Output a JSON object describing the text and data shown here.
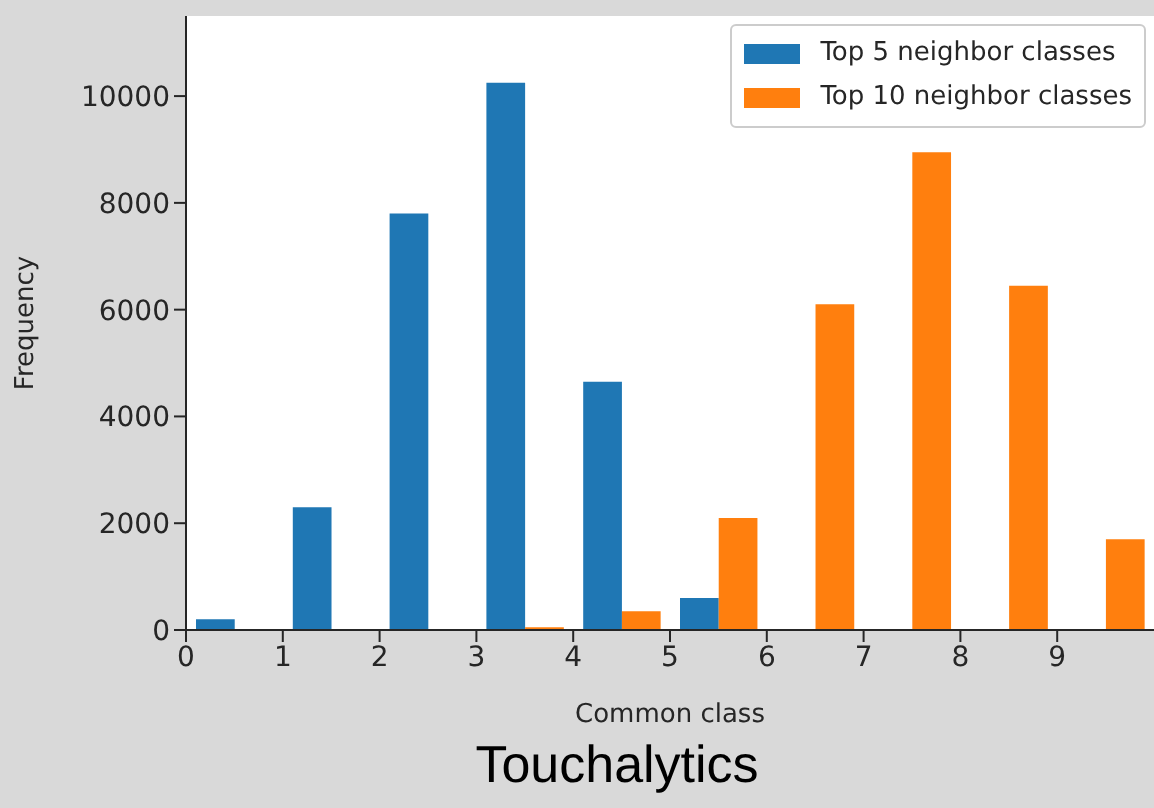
{
  "chart_data": {
    "type": "histogram",
    "xlabel": "Common class",
    "ylabel": "Frequency",
    "bins": [
      0,
      1,
      2,
      3,
      4,
      5,
      6,
      7,
      8,
      9,
      10
    ],
    "series": [
      {
        "name": "Top 5 neighbor classes",
        "color": "#1f77b4",
        "values": [
          200,
          2300,
          7800,
          10250,
          4650,
          600,
          0,
          0,
          0,
          0
        ]
      },
      {
        "name": "Top 10 neighbor classes",
        "color": "#ff7f0e",
        "values": [
          0,
          0,
          0,
          50,
          350,
          2100,
          6100,
          8950,
          6450,
          1700
        ]
      }
    ],
    "xlim": [
      0,
      10
    ],
    "xticks": [
      0,
      1,
      2,
      3,
      4,
      5,
      6,
      7,
      8,
      9
    ],
    "ylim": [
      0,
      11500
    ],
    "yticks": [
      0,
      2000,
      4000,
      6000,
      8000,
      10000
    ],
    "legend": "top right",
    "grid": false,
    "annotations": [
      "Touchalytics"
    ]
  }
}
